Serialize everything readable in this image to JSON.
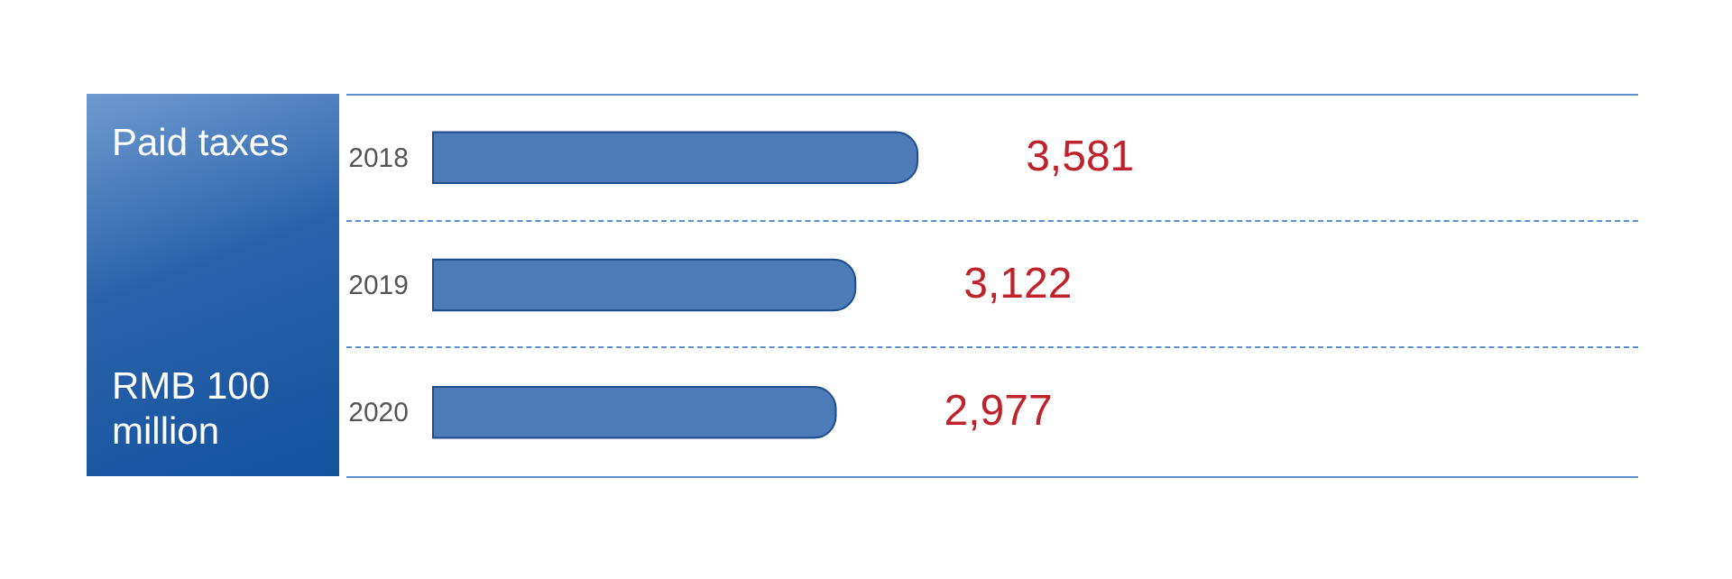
{
  "chart_data": {
    "type": "bar",
    "orientation": "horizontal",
    "title": "Paid taxes",
    "subtitle": "RMB 100 million",
    "categories": [
      "2018",
      "2019",
      "2020"
    ],
    "values": [
      3581,
      3122,
      2977
    ],
    "value_labels": [
      "3,581",
      "3,122",
      "2,977"
    ],
    "color": "#3a6db0"
  }
}
